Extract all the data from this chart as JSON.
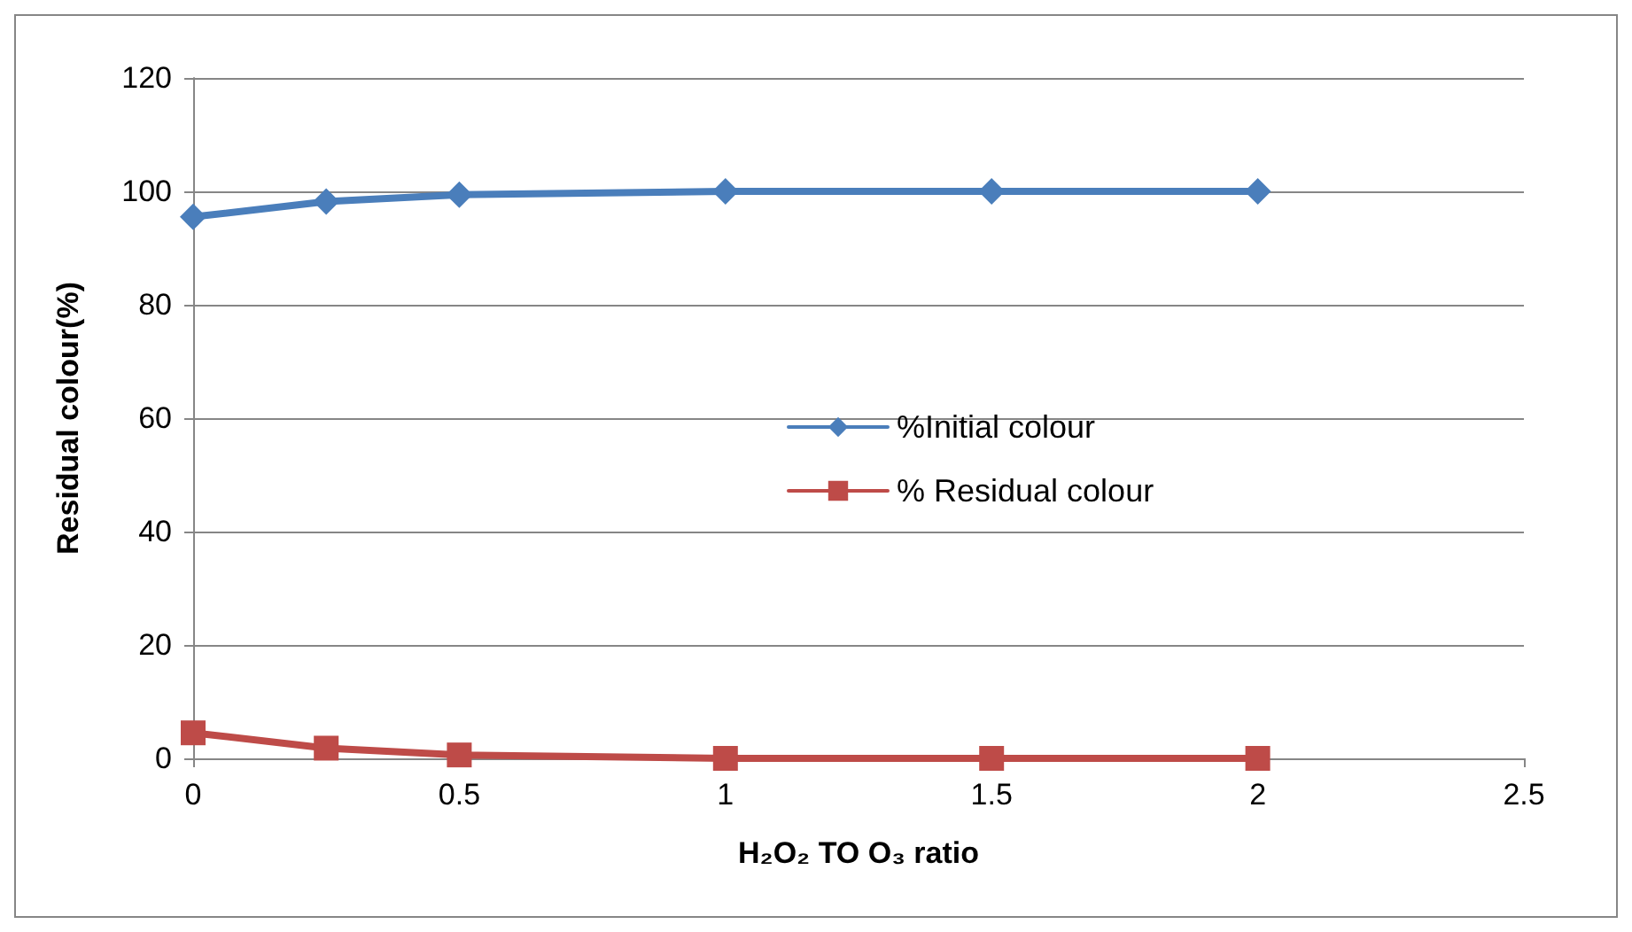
{
  "chart_data": {
    "type": "line",
    "xlabel": "H₂O₂ TO O₃ ratio",
    "ylabel": "Residual colour(%)",
    "x": [
      0,
      0.25,
      0.5,
      1,
      1.5,
      2
    ],
    "series": [
      {
        "name": "%Initial colour",
        "color": "#4a7ebb",
        "marker": "diamond",
        "values": [
          95.5,
          98.2,
          99.4,
          100,
          100,
          100
        ]
      },
      {
        "name": "% Residual colour",
        "color": "#be4b48",
        "marker": "square",
        "values": [
          4.5,
          1.8,
          0.6,
          0,
          0,
          0
        ]
      }
    ],
    "xlim": [
      0,
      2.5
    ],
    "xticks": [
      0,
      0.5,
      1,
      1.5,
      2,
      2.5
    ],
    "ylim": [
      0,
      120
    ],
    "yticks": [
      0,
      20,
      40,
      60,
      80,
      100,
      120
    ],
    "grid": "y",
    "legend": "center",
    "line_style": "solid"
  }
}
